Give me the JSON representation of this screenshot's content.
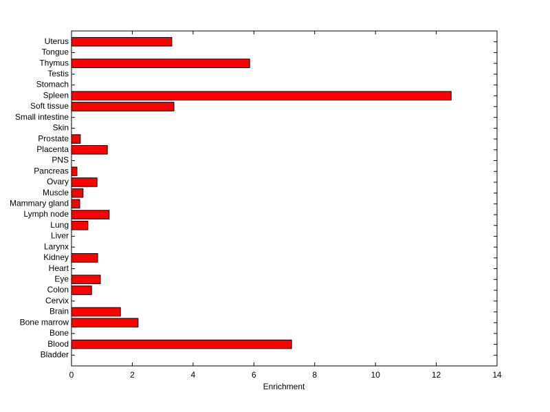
{
  "chart_data": {
    "type": "barh",
    "xlabel": "Enrichment",
    "categories": [
      "Bladder",
      "Blood",
      "Bone",
      "Bone marrow",
      "Brain",
      "Cervix",
      "Colon",
      "Eye",
      "Heart",
      "Kidney",
      "Larynx",
      "Liver",
      "Lung",
      "Lymph node",
      "Mammary gland",
      "Muscle",
      "Ovary",
      "Pancreas",
      "PNS",
      "Placenta",
      "Prostate",
      "Skin",
      "Small intestine",
      "Soft tissue",
      "Spleen",
      "Stomach",
      "Testis",
      "Thymus",
      "Tongue",
      "Uterus"
    ],
    "values": [
      0,
      7.24,
      0,
      2.19,
      1.61,
      0,
      0.66,
      0.95,
      0,
      0.86,
      0,
      0,
      0.54,
      1.24,
      0.27,
      0.38,
      0.84,
      0.18,
      0,
      1.18,
      0.29,
      0,
      0,
      3.37,
      12.49,
      0,
      0,
      5.86,
      0,
      3.3
    ],
    "color": "#ff0000",
    "xlim": [
      0,
      14
    ],
    "xticks": [
      0,
      2,
      4,
      6,
      8,
      10,
      12,
      14
    ]
  }
}
